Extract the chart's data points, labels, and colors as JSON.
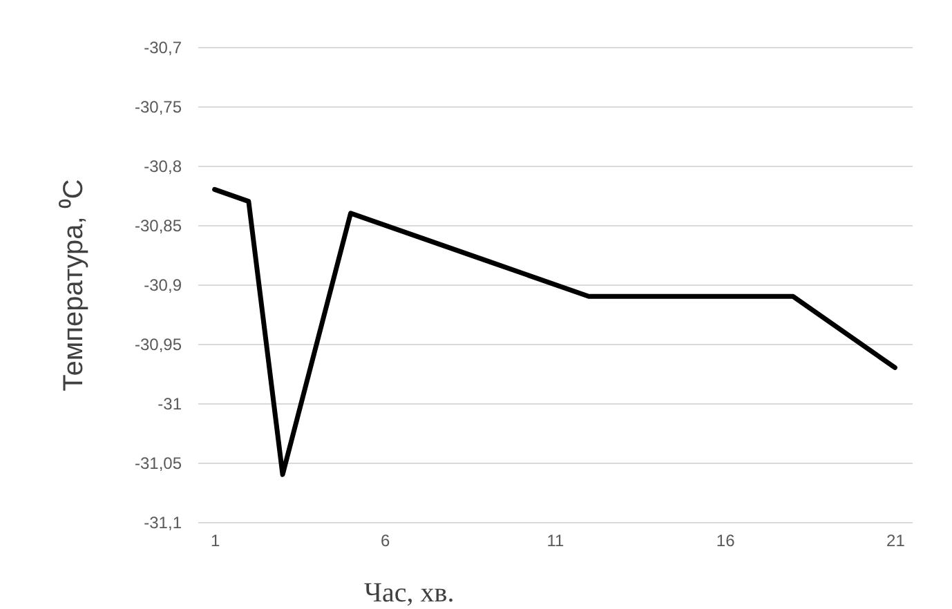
{
  "chart_data": {
    "type": "line",
    "xlabel": "Час, хв.",
    "ylabel": "Температура, ⁰C",
    "x": [
      1,
      2,
      3,
      5,
      9,
      12,
      18,
      21
    ],
    "series": [
      {
        "color": "#000000",
        "values": [
          -30.82,
          -30.83,
          -31.06,
          -30.84,
          -30.88,
          -30.91,
          -30.91,
          -30.97
        ]
      }
    ],
    "xlim": [
      0.5,
      21.5
    ],
    "xticks": [
      1,
      6,
      11,
      16,
      21
    ],
    "ylim": [
      -31.1,
      -30.7
    ],
    "yticks": [
      {
        "value": -31.1,
        "label": "-31,1"
      },
      {
        "value": -31.05,
        "label": "-31,05"
      },
      {
        "value": -31,
        "label": "-31"
      },
      {
        "value": -30.95,
        "label": "-30,95"
      },
      {
        "value": -30.9,
        "label": "-30,9"
      },
      {
        "value": -30.85,
        "label": "-30,85"
      },
      {
        "value": -30.8,
        "label": "-30,8"
      },
      {
        "value": -30.75,
        "label": "-30,75"
      },
      {
        "value": -30.7,
        "label": "-30,7"
      }
    ],
    "grid": "y",
    "line_style": "solid"
  }
}
